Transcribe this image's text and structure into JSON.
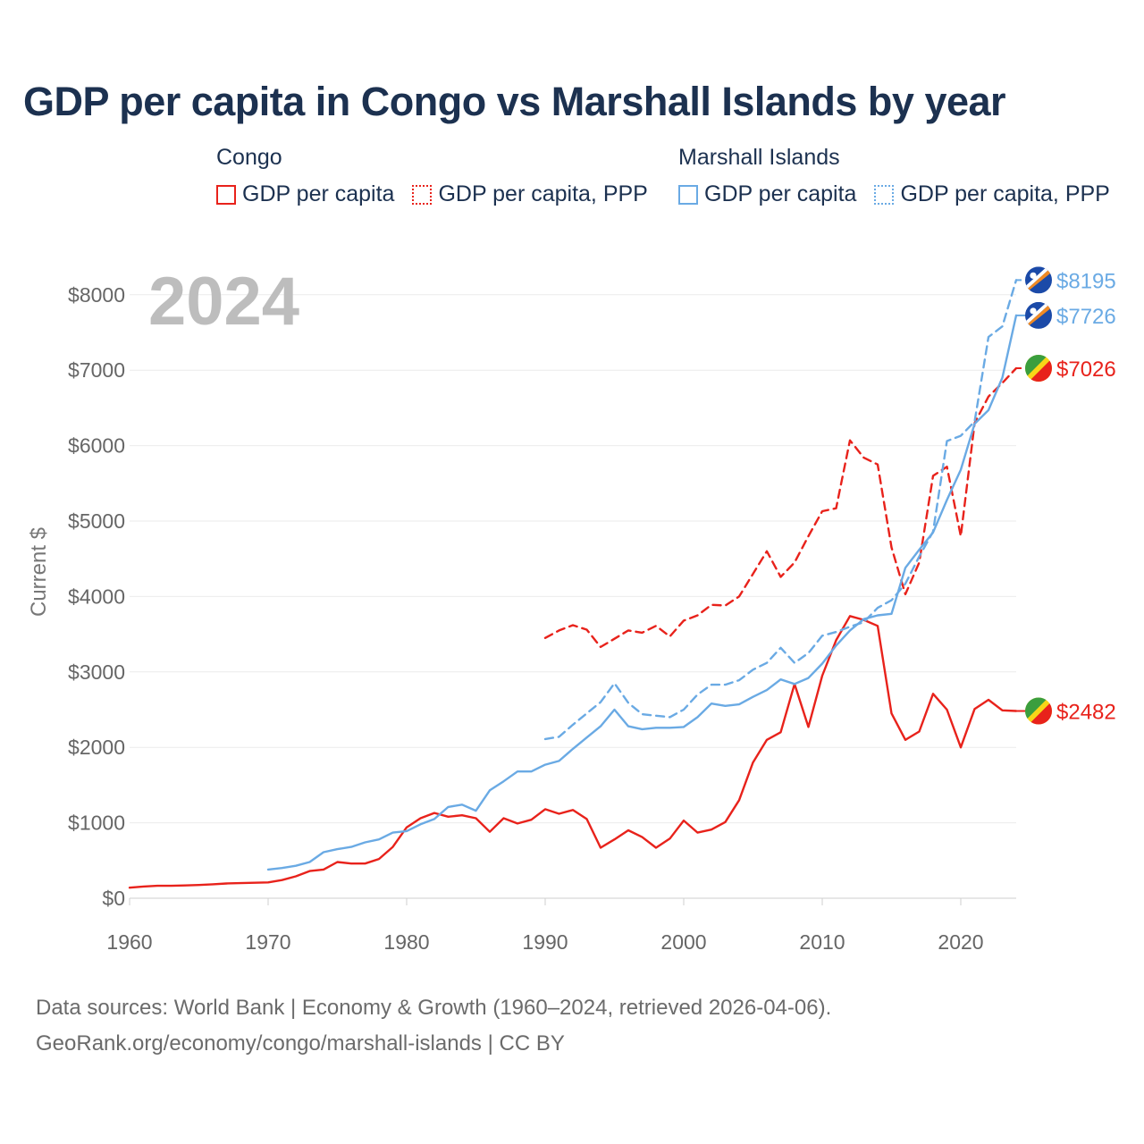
{
  "chart_data": {
    "type": "line",
    "title": "GDP per capita in Congo vs Marshall Islands by year",
    "year_label": "2024",
    "ylabel": "Current $",
    "xlabel": "",
    "xlim": [
      1960,
      2024
    ],
    "ylim": [
      0,
      8300
    ],
    "x_ticks": [
      1960,
      1970,
      1980,
      1990,
      2000,
      2010,
      2020
    ],
    "y_ticks": [
      {
        "value": 0,
        "label": "$0"
      },
      {
        "value": 1000,
        "label": "$1000"
      },
      {
        "value": 2000,
        "label": "$2000"
      },
      {
        "value": 3000,
        "label": "$3000"
      },
      {
        "value": 4000,
        "label": "$4000"
      },
      {
        "value": 5000,
        "label": "$5000"
      },
      {
        "value": 6000,
        "label": "$6000"
      },
      {
        "value": 7000,
        "label": "$7000"
      },
      {
        "value": 8000,
        "label": "$8000"
      }
    ],
    "legend": {
      "groups": [
        {
          "name": "Congo",
          "items": [
            {
              "label": "GDP per capita",
              "style": "solid",
              "color": "#e8221b"
            },
            {
              "label": "GDP per capita, PPP",
              "style": "dotted",
              "color": "#e8221b"
            }
          ]
        },
        {
          "name": "Marshall Islands",
          "items": [
            {
              "label": "GDP per capita",
              "style": "solid",
              "color": "#6aaae4"
            },
            {
              "label": "GDP per capita, PPP",
              "style": "dotted",
              "color": "#6aaae4"
            }
          ]
        }
      ]
    },
    "series": [
      {
        "name": "Congo GDP per capita",
        "country": "Congo",
        "color": "#e8221b",
        "dashed": false,
        "end_label": "$2482",
        "x": [
          1960,
          1961,
          1962,
          1963,
          1964,
          1965,
          1966,
          1967,
          1968,
          1969,
          1970,
          1971,
          1972,
          1973,
          1974,
          1975,
          1976,
          1977,
          1978,
          1979,
          1980,
          1981,
          1982,
          1983,
          1984,
          1985,
          1986,
          1987,
          1988,
          1989,
          1990,
          1991,
          1992,
          1993,
          1994,
          1995,
          1996,
          1997,
          1998,
          1999,
          2000,
          2001,
          2002,
          2003,
          2004,
          2005,
          2006,
          2007,
          2008,
          2009,
          2010,
          2011,
          2012,
          2013,
          2014,
          2015,
          2016,
          2017,
          2018,
          2019,
          2020,
          2021,
          2022,
          2023,
          2024
        ],
        "values": [
          140,
          155,
          165,
          165,
          170,
          175,
          185,
          195,
          200,
          205,
          210,
          240,
          290,
          360,
          380,
          480,
          460,
          460,
          520,
          680,
          940,
          1060,
          1130,
          1080,
          1100,
          1060,
          880,
          1060,
          990,
          1040,
          1180,
          1120,
          1170,
          1050,
          670,
          780,
          900,
          810,
          670,
          790,
          1030,
          870,
          910,
          1010,
          1300,
          1800,
          2100,
          2200,
          2840,
          2270,
          2950,
          3420,
          3740,
          3690,
          3610,
          2450,
          2100,
          2210,
          2710,
          2500,
          2000,
          2510,
          2630,
          2490,
          2482
        ]
      },
      {
        "name": "Congo GDP per capita, PPP",
        "country": "Congo",
        "color": "#e8221b",
        "dashed": true,
        "end_label": "$7026",
        "x": [
          1990,
          1991,
          1992,
          1993,
          1994,
          1995,
          1996,
          1997,
          1998,
          1999,
          2000,
          2001,
          2002,
          2003,
          2004,
          2005,
          2006,
          2007,
          2008,
          2009,
          2010,
          2011,
          2012,
          2013,
          2014,
          2015,
          2016,
          2017,
          2018,
          2019,
          2020,
          2021,
          2022,
          2023,
          2024
        ],
        "values": [
          3450,
          3550,
          3620,
          3560,
          3330,
          3440,
          3550,
          3520,
          3610,
          3470,
          3680,
          3750,
          3890,
          3880,
          4000,
          4300,
          4600,
          4260,
          4450,
          4800,
          5130,
          5170,
          6070,
          5840,
          5750,
          4650,
          4030,
          4450,
          5600,
          5720,
          4800,
          6300,
          6650,
          6830,
          7026
        ]
      },
      {
        "name": "Marshall Islands GDP per capita",
        "country": "Marshall Islands",
        "color": "#6aaae4",
        "dashed": false,
        "end_label": "$7726",
        "x": [
          1970,
          1971,
          1972,
          1973,
          1974,
          1975,
          1976,
          1977,
          1978,
          1979,
          1980,
          1981,
          1982,
          1983,
          1984,
          1985,
          1986,
          1987,
          1988,
          1989,
          1990,
          1991,
          1992,
          1993,
          1994,
          1995,
          1996,
          1997,
          1998,
          1999,
          2000,
          2001,
          2002,
          2003,
          2004,
          2005,
          2006,
          2007,
          2008,
          2009,
          2010,
          2011,
          2012,
          2013,
          2014,
          2015,
          2016,
          2017,
          2018,
          2019,
          2020,
          2021,
          2022,
          2023,
          2024
        ],
        "values": [
          380,
          400,
          430,
          480,
          610,
          650,
          680,
          740,
          780,
          870,
          890,
          980,
          1050,
          1210,
          1240,
          1160,
          1430,
          1550,
          1680,
          1680,
          1770,
          1820,
          1980,
          2130,
          2280,
          2500,
          2280,
          2240,
          2260,
          2260,
          2270,
          2400,
          2580,
          2550,
          2570,
          2670,
          2760,
          2900,
          2840,
          2920,
          3110,
          3350,
          3550,
          3700,
          3750,
          3770,
          4380,
          4620,
          4850,
          5280,
          5680,
          6290,
          6470,
          6900,
          7726
        ]
      },
      {
        "name": "Marshall Islands GDP per capita, PPP",
        "country": "Marshall Islands",
        "color": "#6aaae4",
        "dashed": true,
        "end_label": "$8195",
        "x": [
          1990,
          1991,
          1992,
          1993,
          1994,
          1995,
          1996,
          1997,
          1998,
          1999,
          2000,
          2001,
          2002,
          2003,
          2004,
          2005,
          2006,
          2007,
          2008,
          2009,
          2010,
          2011,
          2012,
          2013,
          2014,
          2015,
          2016,
          2017,
          2018,
          2019,
          2020,
          2021,
          2022,
          2023,
          2024
        ],
        "values": [
          2110,
          2140,
          2300,
          2450,
          2600,
          2850,
          2590,
          2440,
          2420,
          2400,
          2500,
          2700,
          2830,
          2830,
          2890,
          3030,
          3120,
          3320,
          3120,
          3250,
          3480,
          3530,
          3600,
          3660,
          3850,
          3950,
          4170,
          4530,
          4860,
          6060,
          6130,
          6320,
          7440,
          7580,
          8195
        ]
      }
    ]
  },
  "footer": {
    "line1": "Data sources: World Bank | Economy & Growth (1960–2024, retrieved 2026-04-06).",
    "line2": "GeoRank.org/economy/congo/marshall-islands | CC BY"
  }
}
